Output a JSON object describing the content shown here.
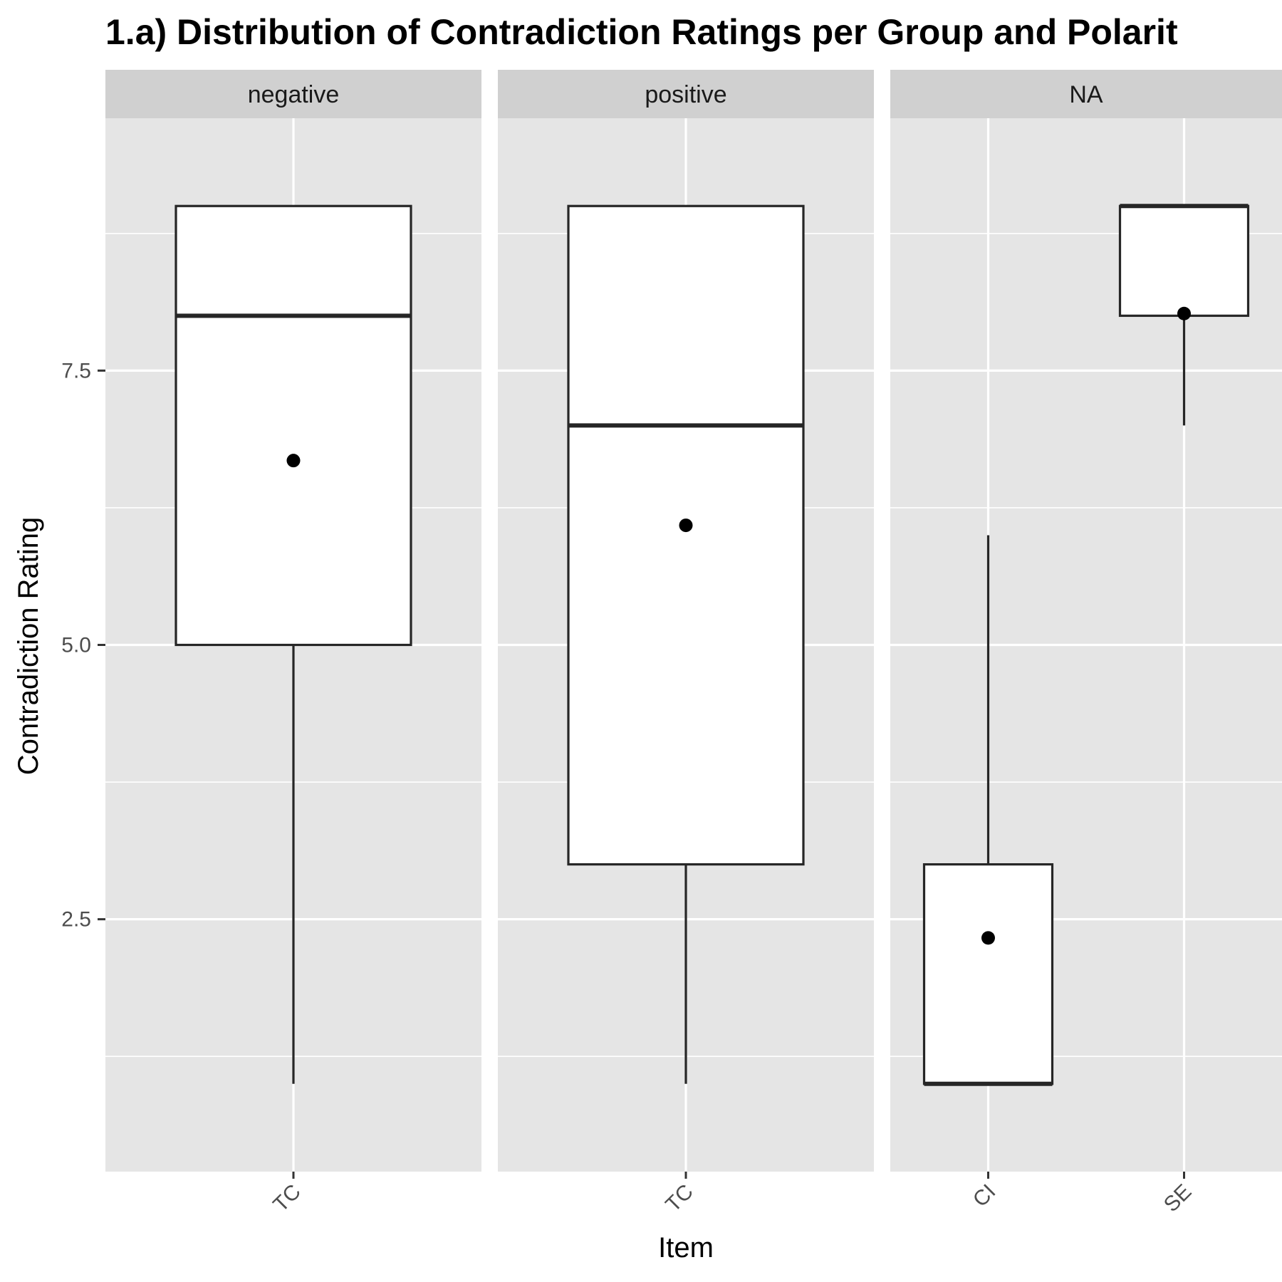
{
  "chart_data": {
    "type": "boxplot",
    "title": "1.a) Distribution of Contradiction Ratings per Group and Polarit",
    "xlabel": "Item",
    "ylabel": "Contradiction Rating",
    "ylim": [
      0.2,
      9.8
    ],
    "y_ticks": [
      2.5,
      5.0,
      7.5
    ],
    "y_tick_labels": [
      "2.5",
      "5.0",
      "7.5"
    ],
    "y_minor_ticks": [
      1.25,
      3.75,
      6.25,
      8.75
    ],
    "grid": true,
    "facets": [
      {
        "label": "negative",
        "categories": [
          "TC"
        ],
        "boxes": [
          {
            "category": "TC",
            "lower_whisker": 1,
            "q1": 5,
            "median": 8,
            "q3": 9,
            "upper_whisker": 9,
            "mean": 6.68
          }
        ]
      },
      {
        "label": "positive",
        "categories": [
          "TC"
        ],
        "boxes": [
          {
            "category": "TC",
            "lower_whisker": 1,
            "q1": 3,
            "median": 7,
            "q3": 9,
            "upper_whisker": 9,
            "mean": 6.09
          }
        ]
      },
      {
        "label": "NA",
        "categories": [
          "CI",
          "SE"
        ],
        "boxes": [
          {
            "category": "CI",
            "lower_whisker": 1,
            "q1": 1,
            "median": 1,
            "q3": 3,
            "upper_whisker": 6,
            "mean": 2.33
          },
          {
            "category": "SE",
            "lower_whisker": 7,
            "q1": 8,
            "median": 9,
            "q3": 9,
            "upper_whisker": 9,
            "mean": 8.02
          }
        ]
      }
    ]
  },
  "colors": {
    "panel_bg": "#e5e5e5",
    "strip_bg": "#d0d0d0",
    "grid": "#ffffff",
    "box_fill": "#ffffff",
    "box_stroke": "#262626",
    "mean_point": "#000000",
    "tick": "#333333"
  }
}
